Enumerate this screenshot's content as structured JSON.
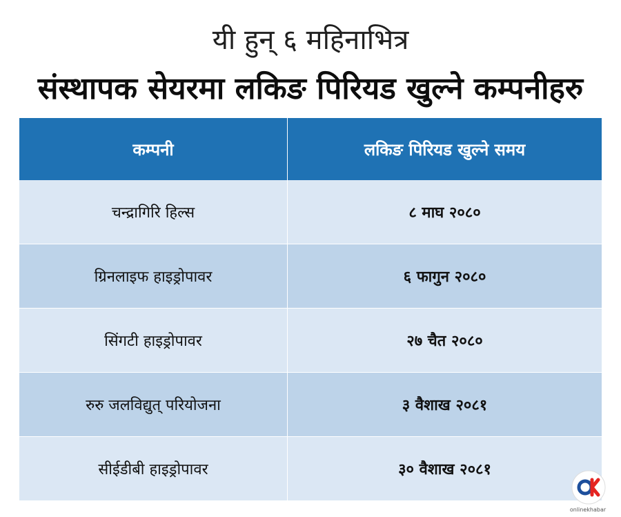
{
  "header": {
    "subtitle": "यी हुन् ६ महिनाभित्र",
    "title": "संस्थापक सेयरमा लकिङ पिरियड खुल्ने कम्पनीहरु"
  },
  "table": {
    "columns": [
      "कम्पनी",
      "लकिङ पिरियड खुल्ने समय"
    ],
    "rows": [
      {
        "company": "चन्द्रागिरि हिल्स",
        "date": "८ माघ २०८०"
      },
      {
        "company": "ग्रिनलाइफ हाइड्रोपावर",
        "date": "६ फागुन २०८०"
      },
      {
        "company": "सिंगटी हाइड्रोपावर",
        "date": "२७ चैत २०८०"
      },
      {
        "company": "रुरु जलविद्युत् परियोजना",
        "date": "३ वैशाख २०८१"
      },
      {
        "company": "सीईडीबी हाइड्रोपावर",
        "date": "३० वैशाख २०८१"
      }
    ]
  },
  "brand": {
    "logo_letters": "OK",
    "logo_text": "onlinekhabar"
  },
  "colors": {
    "header_blue": "#1f72b4",
    "row_light": "#dbe7f4",
    "row_dark": "#bdd3e9",
    "logo_red": "#e52421",
    "logo_blue": "#1d4f9c"
  }
}
